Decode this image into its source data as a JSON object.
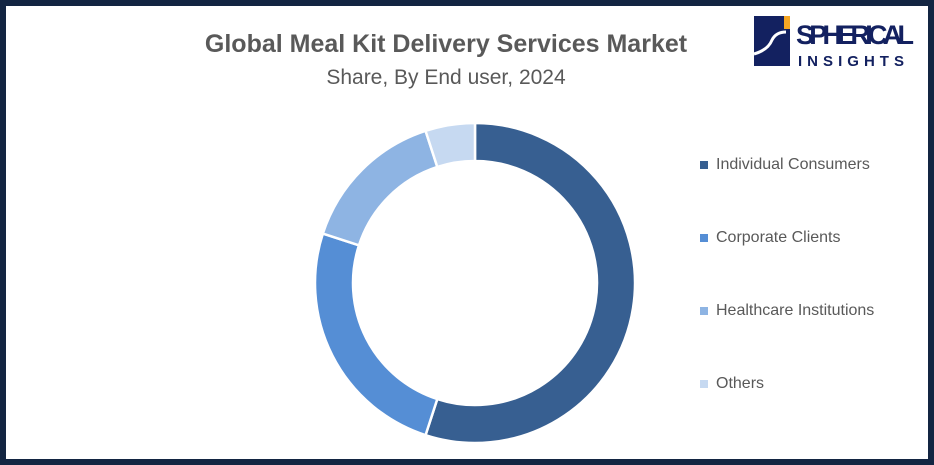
{
  "chart_data": {
    "type": "pie",
    "variant": "donut",
    "title": "Global Meal Kit Delivery Services Market",
    "subtitle": "Share, By End user, 2024",
    "categories": [
      "Individual Consumers",
      "Corporate Clients",
      "Healthcare Institutions",
      "Others"
    ],
    "values": [
      55,
      25,
      15,
      5
    ],
    "unit": "%",
    "colors": [
      "#375f91",
      "#558ed5",
      "#8eb4e3",
      "#c6d9f1"
    ],
    "legend_position": "right"
  },
  "logo": {
    "line1": "SPHERICAL",
    "line2": "INSIGHTS"
  }
}
